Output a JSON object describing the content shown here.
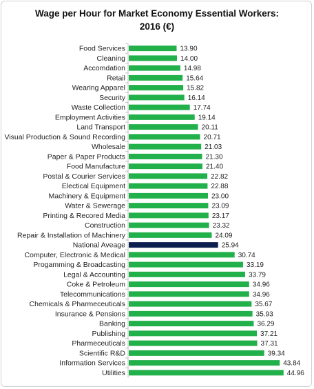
{
  "chart_data": {
    "type": "bar",
    "orientation": "horizontal",
    "title_line1": "Wage per Hour for Market Economy Essential Workers:",
    "title_line2": "2016 (€)",
    "xlim": [
      0,
      47
    ],
    "colors": {
      "default": "#22b04b",
      "highlight": "#0d1f4f"
    },
    "highlight_category": "National Aveage",
    "categories": [
      "Food Services",
      "Cleaning",
      "Accomdation",
      "Retail",
      "Wearing Apparel",
      "Security",
      "Waste Collection",
      "Employment Activities",
      "Land Transport",
      "Visual Production & Sound Recording",
      "Wholesale",
      "Paper & Paper Products",
      "Food Manufacture",
      "Postal & Courier Services",
      "Electical Equipment",
      "Machinery & Equipment",
      "Water & Sewerage",
      "Printing & Recored Media",
      "Construction",
      "Repair & Installation of Machinery",
      "National Aveage",
      "Computer, Electronic & Medical",
      "Progamming & Broadcasting",
      "Legal & Accounting",
      "Coke & Petroleum",
      "Telecommunications",
      "Chemicals & Pharmeceuticals",
      "Insurance & Pensions",
      "Banking",
      "Publishing",
      "Pharmeceuticals",
      "Scientific R&D",
      "Information Services",
      "Utilities"
    ],
    "values": [
      13.9,
      14.0,
      14.98,
      15.64,
      15.82,
      16.14,
      17.74,
      19.14,
      20.11,
      20.71,
      21.03,
      21.3,
      21.4,
      22.82,
      22.88,
      23.0,
      23.09,
      23.17,
      23.32,
      24.09,
      25.94,
      30.74,
      33.19,
      33.79,
      34.96,
      34.96,
      35.67,
      35.93,
      36.29,
      37.21,
      37.31,
      39.34,
      43.84,
      44.96
    ],
    "value_labels": [
      "13.90",
      "14.00",
      "14.98",
      "15.64",
      "15.82",
      "16.14",
      "17.74",
      "19.14",
      "20.11",
      "20.71",
      "21.03",
      "21.30",
      "21.40",
      "22.82",
      "22.88",
      "23.00",
      "23.09",
      "23.17",
      "23.32",
      "24.09",
      "25.94",
      "30.74",
      "33.19",
      "33.79",
      "34.96",
      "34.96",
      "35.67",
      "35.93",
      "36.29",
      "37.21",
      "37.31",
      "39.34",
      "43.84",
      "44.96"
    ]
  }
}
